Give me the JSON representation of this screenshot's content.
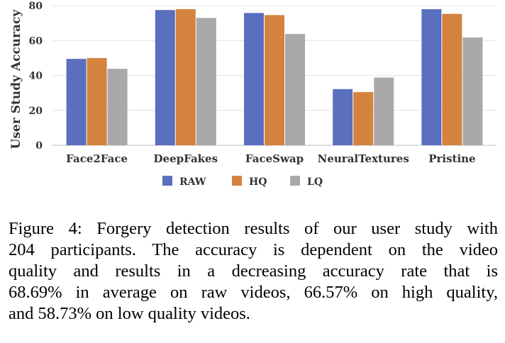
{
  "chart_data": {
    "type": "bar",
    "ylabel": "User Study Accuracy",
    "ylim": [
      0,
      80
    ],
    "yticks": [
      "0",
      "20",
      "40",
      "60",
      "80"
    ],
    "grid": true,
    "legend_position": "bottom",
    "categories": [
      "Face2Face",
      "DeepFakes",
      "FaceSwap",
      "NeuralTextures",
      "Pristine"
    ],
    "series": [
      {
        "name": "RAW",
        "color": "#5b6fbf",
        "values": [
          49.5,
          77.5,
          75.8,
          32.2,
          78.0
        ]
      },
      {
        "name": "HQ",
        "color": "#d4833f",
        "values": [
          50.0,
          78.0,
          74.6,
          30.5,
          75.3
        ]
      },
      {
        "name": "LQ",
        "color": "#a9a9a9",
        "values": [
          43.8,
          73.0,
          63.8,
          38.8,
          61.8
        ]
      }
    ]
  },
  "caption": {
    "lines": [
      "Figure 4:  Forgery detection results of our user study with",
      "204 participants.  The accuracy is dependent on the video",
      "quality and results in a decreasing accuracy rate that is",
      "68.69% in average on raw videos, 66.57% on high quality,",
      "and 58.73% on low quality videos."
    ]
  }
}
